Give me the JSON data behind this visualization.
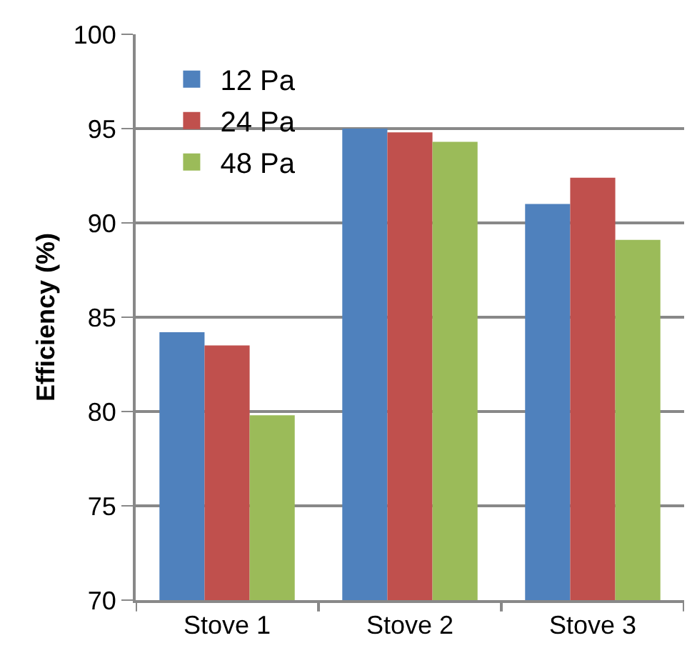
{
  "chart_data": {
    "type": "bar",
    "ylabel": "Efficiency (%)",
    "categories": [
      "Stove 1",
      "Stove 2",
      "Stove 3"
    ],
    "series": [
      {
        "name": "12 Pa",
        "color": "#4f81bd",
        "values": [
          84.2,
          95.0,
          91.0
        ]
      },
      {
        "name": "24 Pa",
        "color": "#c0504d",
        "values": [
          83.5,
          94.8,
          92.4
        ]
      },
      {
        "name": "48 Pa",
        "color": "#9bbb59",
        "values": [
          79.8,
          94.3,
          89.1
        ]
      }
    ],
    "ylim": [
      70,
      100
    ],
    "yticks": [
      70,
      75,
      80,
      85,
      90,
      95,
      100
    ],
    "grid": "y",
    "legend": "top left"
  }
}
